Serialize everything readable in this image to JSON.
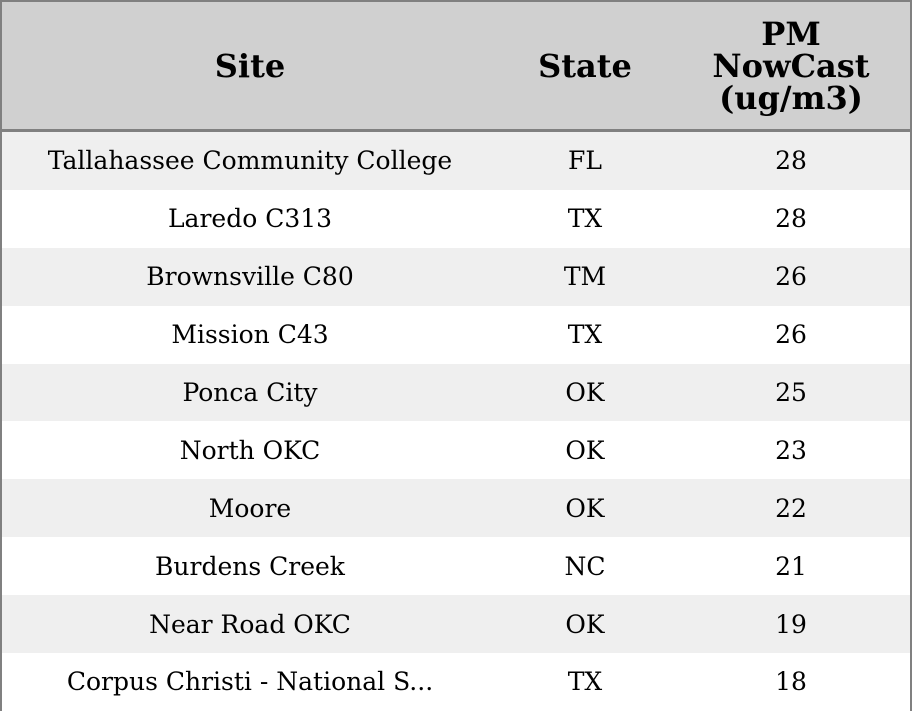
{
  "table": {
    "headers": {
      "site": "Site",
      "state": "State",
      "value": "PM NowCast (ug/m3)"
    },
    "rows": [
      {
        "site": "Tallahassee Community College",
        "state": "FL",
        "value": "28"
      },
      {
        "site": "Laredo C313",
        "state": "TX",
        "value": "28"
      },
      {
        "site": "Brownsville C80",
        "state": "TM",
        "value": "26"
      },
      {
        "site": "Mission C43",
        "state": "TX",
        "value": "26"
      },
      {
        "site": "Ponca City",
        "state": "OK",
        "value": "25"
      },
      {
        "site": "North OKC",
        "state": "OK",
        "value": "23"
      },
      {
        "site": "Moore",
        "state": "OK",
        "value": "22"
      },
      {
        "site": "Burdens Creek",
        "state": "NC",
        "value": "21"
      },
      {
        "site": "Near Road OKC",
        "state": "OK",
        "value": "19"
      },
      {
        "site": "Corpus Christi - National S...",
        "state": "TX",
        "value": "18"
      }
    ]
  },
  "colors": {
    "header_bg": "#d0d0d0",
    "row_alt_bg": "#efefef",
    "row_bg": "#ffffff",
    "border": "#808080"
  }
}
